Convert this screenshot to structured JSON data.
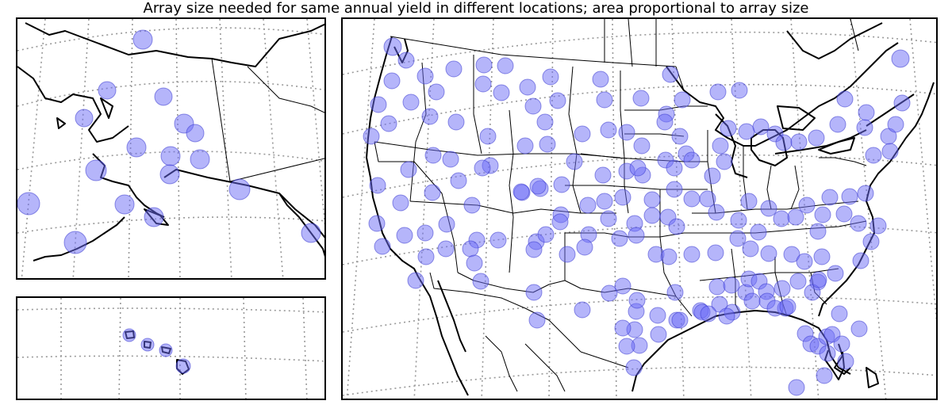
{
  "title": "Array size needed for same annual yield in different locations; area proportional to array size",
  "style": {
    "marker_color": "#6b6bf5",
    "marker_opacity": 0.5,
    "land_line": "#000000",
    "graticule": "#999999"
  },
  "panels": {
    "alaska": {
      "sites": [
        [
          158,
          26,
          12
        ],
        [
          113,
          90,
          11
        ],
        [
          84,
          125,
          11
        ],
        [
          184,
          98,
          11
        ],
        [
          210,
          132,
          12
        ],
        [
          224,
          144,
          11
        ],
        [
          150,
          162,
          12
        ],
        [
          193,
          173,
          12
        ],
        [
          230,
          177,
          12
        ],
        [
          99,
          191,
          13
        ],
        [
          192,
          196,
          12
        ],
        [
          135,
          234,
          12
        ],
        [
          172,
          250,
          12
        ],
        [
          14,
          233,
          14
        ],
        [
          280,
          215,
          13
        ],
        [
          73,
          282,
          14
        ],
        [
          370,
          270,
          12
        ]
      ]
    },
    "hawaii": {
      "sites": [
        [
          141,
          47,
          8
        ],
        [
          164,
          59,
          8
        ],
        [
          187,
          66,
          8
        ],
        [
          209,
          86,
          9
        ]
      ]
    },
    "conus": {
      "sites": [
        [
          63,
          35,
          11
        ],
        [
          80,
          52,
          10
        ],
        [
          104,
          72,
          10
        ],
        [
          140,
          63,
          10
        ],
        [
          178,
          58,
          10
        ],
        [
          205,
          59,
          10
        ],
        [
          62,
          78,
          10
        ],
        [
          45,
          108,
          10
        ],
        [
          86,
          105,
          10
        ],
        [
          118,
          92,
          10
        ],
        [
          177,
          82,
          10
        ],
        [
          200,
          93,
          10
        ],
        [
          233,
          86,
          10
        ],
        [
          262,
          73,
          10
        ],
        [
          271,
          103,
          10
        ],
        [
          240,
          110,
          10
        ],
        [
          58,
          132,
          10
        ],
        [
          110,
          123,
          10
        ],
        [
          143,
          130,
          10
        ],
        [
          183,
          148,
          10
        ],
        [
          255,
          130,
          10
        ],
        [
          325,
          76,
          10
        ],
        [
          330,
          102,
          10
        ],
        [
          376,
          100,
          10
        ],
        [
          413,
          70,
          10
        ],
        [
          473,
          92,
          10
        ],
        [
          500,
          90,
          10
        ],
        [
          36,
          148,
          10
        ],
        [
          83,
          190,
          10
        ],
        [
          114,
          172,
          10
        ],
        [
          136,
          177,
          10
        ],
        [
          186,
          185,
          10
        ],
        [
          230,
          160,
          10
        ],
        [
          258,
          158,
          10
        ],
        [
          302,
          145,
          10
        ],
        [
          335,
          140,
          10
        ],
        [
          358,
          143,
          10
        ],
        [
          408,
          120,
          10
        ],
        [
          428,
          102,
          10
        ],
        [
          44,
          210,
          10
        ],
        [
          73,
          232,
          10
        ],
        [
          113,
          219,
          10
        ],
        [
          146,
          204,
          10
        ],
        [
          176,
          188,
          10
        ],
        [
          226,
          219,
          10
        ],
        [
          249,
          214,
          10
        ],
        [
          276,
          209,
          10
        ],
        [
          292,
          180,
          10
        ],
        [
          328,
          197,
          10
        ],
        [
          358,
          192,
          10
        ],
        [
          377,
          160,
          10
        ],
        [
          406,
          130,
          10
        ],
        [
          425,
          148,
          10
        ],
        [
          433,
          170,
          10
        ],
        [
          407,
          178,
          10
        ],
        [
          378,
          197,
          10
        ],
        [
          372,
          188,
          10
        ],
        [
          418,
          188,
          10
        ],
        [
          440,
          178,
          10
        ],
        [
          43,
          258,
          10
        ],
        [
          78,
          273,
          10
        ],
        [
          104,
          270,
          10
        ],
        [
          131,
          259,
          10
        ],
        [
          163,
          235,
          10
        ],
        [
          225,
          218,
          10
        ],
        [
          246,
          211,
          10
        ],
        [
          275,
          247,
          10
        ],
        [
          309,
          235,
          10
        ],
        [
          330,
          230,
          10
        ],
        [
          353,
          225,
          10
        ],
        [
          390,
          228,
          10
        ],
        [
          410,
          250,
          10
        ],
        [
          418,
          215,
          10
        ],
        [
          440,
          227,
          10
        ],
        [
          50,
          287,
          10
        ],
        [
          105,
          300,
          10
        ],
        [
          130,
          290,
          10
        ],
        [
          169,
          279,
          10
        ],
        [
          196,
          279,
          10
        ],
        [
          244,
          281,
          10
        ],
        [
          256,
          272,
          10
        ],
        [
          274,
          256,
          10
        ],
        [
          310,
          272,
          10
        ],
        [
          335,
          252,
          10
        ],
        [
          368,
          258,
          10
        ],
        [
          390,
          248,
          10
        ],
        [
          421,
          262,
          10
        ],
        [
          460,
          227,
          10
        ],
        [
          466,
          198,
          10
        ],
        [
          481,
          180,
          10
        ],
        [
          476,
          160,
          10
        ],
        [
          486,
          138,
          10
        ],
        [
          509,
          142,
          10
        ],
        [
          527,
          136,
          10
        ],
        [
          545,
          145,
          10
        ],
        [
          556,
          156,
          10
        ],
        [
          575,
          155,
          10
        ],
        [
          597,
          150,
          10
        ],
        [
          624,
          133,
          10
        ],
        [
          658,
          137,
          10
        ],
        [
          688,
          148,
          10
        ],
        [
          690,
          167,
          10
        ],
        [
          697,
          133,
          10
        ],
        [
          633,
          101,
          10
        ],
        [
          660,
          118,
          10
        ],
        [
          669,
          172,
          10
        ],
        [
          705,
          106,
          10
        ],
        [
          703,
          50,
          11
        ],
        [
          92,
          330,
          10
        ],
        [
          161,
          290,
          10
        ],
        [
          166,
          308,
          10
        ],
        [
          174,
          331,
          10
        ],
        [
          241,
          291,
          10
        ],
        [
          283,
          297,
          10
        ],
        [
          305,
          288,
          10
        ],
        [
          349,
          277,
          10
        ],
        [
          370,
          273,
          10
        ],
        [
          395,
          297,
          10
        ],
        [
          411,
          300,
          10
        ],
        [
          440,
          297,
          10
        ],
        [
          470,
          295,
          10
        ],
        [
          498,
          277,
          10
        ],
        [
          514,
          290,
          10
        ],
        [
          537,
          296,
          10
        ],
        [
          566,
          297,
          10
        ],
        [
          582,
          306,
          10
        ],
        [
          604,
          300,
          10
        ],
        [
          621,
          321,
          10
        ],
        [
          653,
          305,
          10
        ],
        [
          666,
          281,
          10
        ],
        [
          599,
          268,
          10
        ],
        [
          632,
          246,
          10
        ],
        [
          650,
          258,
          10
        ],
        [
          675,
          261,
          10
        ],
        [
          605,
          247,
          10
        ],
        [
          471,
          244,
          10
        ],
        [
          499,
          254,
          10
        ],
        [
          524,
          269,
          10
        ],
        [
          537,
          239,
          10
        ],
        [
          512,
          230,
          10
        ],
        [
          553,
          252,
          10
        ],
        [
          571,
          250,
          10
        ],
        [
          585,
          235,
          10
        ],
        [
          614,
          225,
          10
        ],
        [
          639,
          224,
          10
        ],
        [
          659,
          220,
          10
        ],
        [
          241,
          345,
          10
        ],
        [
          245,
          380,
          10
        ],
        [
          302,
          367,
          10
        ],
        [
          336,
          346,
          10
        ],
        [
          353,
          337,
          10
        ],
        [
          370,
          369,
          10
        ],
        [
          371,
          355,
          10
        ],
        [
          368,
          392,
          10
        ],
        [
          353,
          390,
          10
        ],
        [
          374,
          412,
          10
        ],
        [
          419,
          345,
          10
        ],
        [
          421,
          380,
          10
        ],
        [
          451,
          368,
          10
        ],
        [
          472,
          338,
          10
        ],
        [
          490,
          336,
          10
        ],
        [
          508,
          345,
          10
        ],
        [
          512,
          328,
          10
        ],
        [
          525,
          331,
          10
        ],
        [
          534,
          344,
          10
        ],
        [
          516,
          356,
          10
        ],
        [
          535,
          356,
          10
        ],
        [
          554,
          340,
          10
        ],
        [
          558,
          365,
          10
        ],
        [
          574,
          331,
          10
        ],
        [
          599,
          332,
          10
        ],
        [
          592,
          345,
          10
        ],
        [
          600,
          329,
          10
        ],
        [
          626,
          372,
          10
        ],
        [
          651,
          391,
          10
        ],
        [
          453,
          370,
          10
        ],
        [
          475,
          360,
          10
        ],
        [
          491,
          370,
          10
        ],
        [
          545,
          365,
          10
        ],
        [
          561,
          363,
          10
        ],
        [
          397,
          374,
          10
        ],
        [
          425,
          380,
          10
        ],
        [
          461,
          372,
          10
        ],
        [
          484,
          375,
          10
        ],
        [
          583,
          397,
          10
        ],
        [
          398,
          398,
          10
        ],
        [
          358,
          413,
          10
        ],
        [
          590,
          410,
          10
        ],
        [
          599,
          413,
          10
        ],
        [
          610,
          401,
          10
        ],
        [
          617,
          398,
          10
        ],
        [
          367,
          440,
          10
        ],
        [
          611,
          422,
          10
        ],
        [
          629,
          410,
          10
        ],
        [
          634,
          432,
          10
        ],
        [
          607,
          450,
          10
        ],
        [
          572,
          465,
          10
        ]
      ]
    }
  }
}
